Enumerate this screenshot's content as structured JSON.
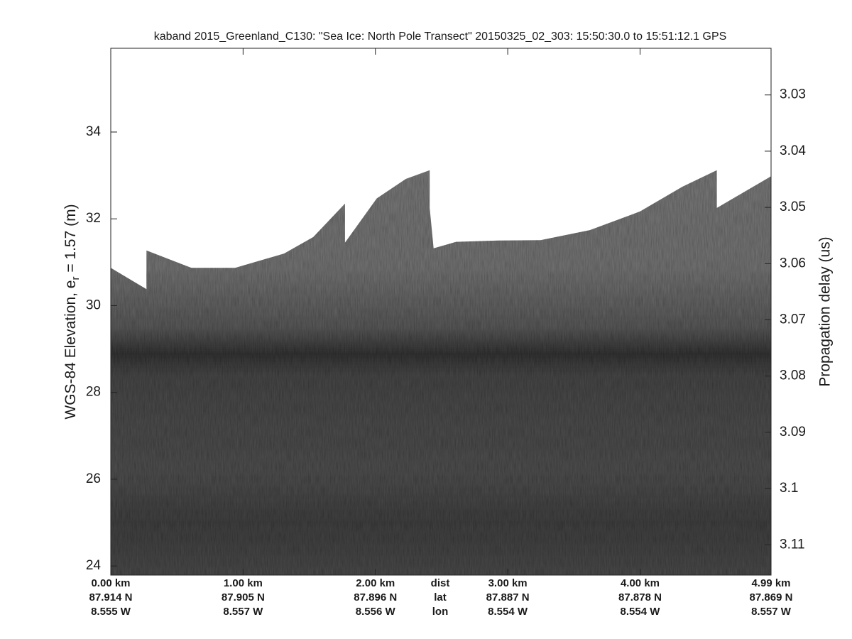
{
  "chart_data": {
    "type": "area",
    "title": "kaband 2015_Greenland_C130: \"Sea Ice: North Pole Transect\"  20150325_02_303: 15:50:30.0 to 15:51:12.1 GPS",
    "ylabel": [
      "WGS-84 Elevation, e",
      "r",
      " = 1.57 (m)"
    ],
    "y2label": "Propagation delay (us)",
    "x": [
      0.0,
      0.27,
      0.27,
      0.61,
      0.94,
      1.31,
      1.53,
      1.77,
      1.77,
      2.01,
      2.23,
      2.41,
      2.41,
      2.44,
      2.61,
      2.93,
      3.25,
      3.62,
      4.0,
      4.32,
      4.58,
      4.58,
      4.99
    ],
    "values": [
      30.87,
      30.38,
      31.27,
      30.87,
      30.87,
      31.2,
      31.58,
      32.35,
      31.45,
      32.47,
      32.92,
      33.12,
      32.25,
      31.32,
      31.47,
      31.5,
      31.51,
      31.74,
      32.17,
      32.74,
      33.12,
      32.25,
      32.98
    ],
    "xlim": [
      0,
      4.99
    ],
    "xticks": [
      {
        "value": 0,
        "label": "0.00 km"
      },
      {
        "value": 1,
        "label": "1.00 km"
      },
      {
        "value": 2,
        "label": "2.00 km"
      },
      {
        "value": 3,
        "label": "3.00 km"
      },
      {
        "value": 4,
        "label": "4.00 km"
      },
      {
        "value": 4.99,
        "label": "4.99 km"
      }
    ],
    "lat_labels": [
      "87.914 N",
      "87.905 N",
      "87.896 N",
      "87.887 N",
      "87.878 N",
      "87.869 N"
    ],
    "lon_labels": [
      "8.555 W",
      "8.557 W",
      "8.556 W",
      "8.554 W",
      "8.554 W",
      "8.557 W"
    ],
    "row_headers": [
      "dist",
      "lat",
      "lon"
    ],
    "ylim": [
      23.79,
      35.93
    ],
    "yticks": [
      24,
      26,
      28,
      30,
      32,
      34
    ],
    "y2lim": [
      3.1154,
      3.0217
    ],
    "y2ticks": [
      3.03,
      3.04,
      3.05,
      3.06,
      3.07,
      3.08,
      3.09,
      3.1,
      3.11
    ]
  }
}
